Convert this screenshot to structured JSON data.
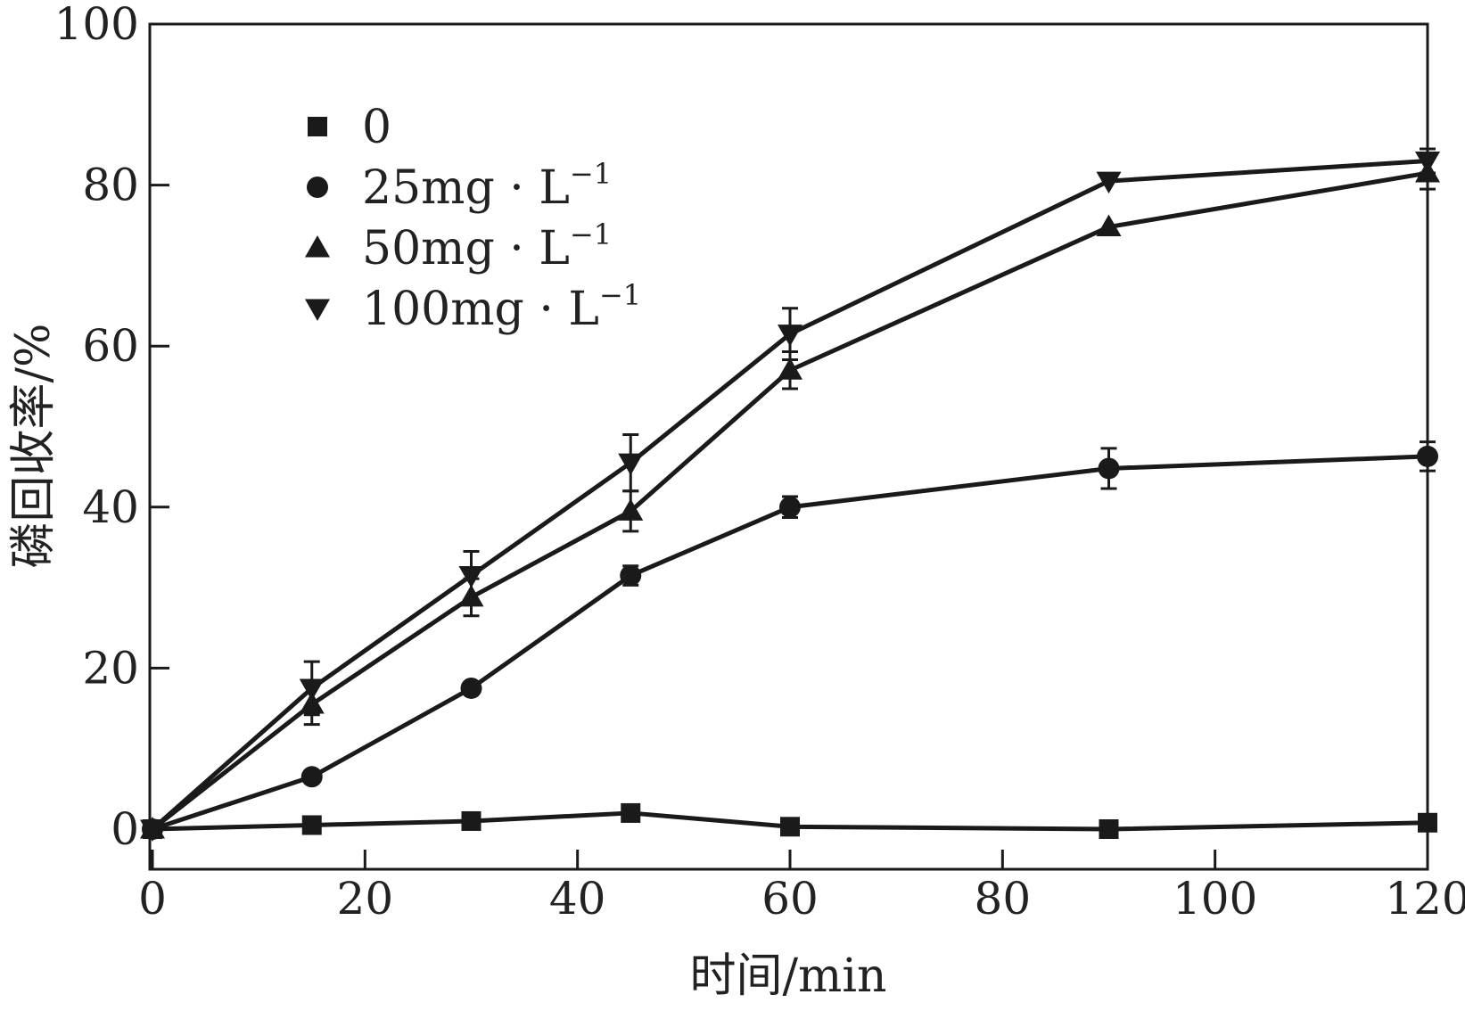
{
  "chart_data": {
    "type": "line",
    "title": "",
    "xlabel": "时间/min",
    "ylabel": "磷回收率/%",
    "xlim": [
      0,
      120
    ],
    "ylim": [
      -5,
      100
    ],
    "x_ticks": [
      0,
      20,
      40,
      60,
      80,
      100,
      120
    ],
    "y_ticks": [
      0,
      20,
      40,
      60,
      80,
      100
    ],
    "x_tick_labels": [
      "0",
      "20",
      "40",
      "60",
      "80",
      "100",
      "120"
    ],
    "y_tick_labels": [
      "0",
      "20",
      "40",
      "60",
      "80",
      "100"
    ],
    "grid": false,
    "legend_position": "top-left",
    "x": [
      0,
      15,
      30,
      45,
      60,
      90,
      120
    ],
    "series": [
      {
        "name": "0",
        "name_main": "0",
        "name_sup": "",
        "marker": "square",
        "values": [
          0,
          0.5,
          1,
          2,
          0.3,
          0,
          0.8
        ],
        "errors": [
          0,
          0,
          0,
          0,
          0,
          0,
          0
        ]
      },
      {
        "name": "25mg·L−1",
        "name_main": "25mg · L",
        "name_sup": "−1",
        "marker": "circle",
        "values": [
          0,
          6.5,
          17.5,
          31.5,
          40,
          44.8,
          46.3
        ],
        "errors": [
          0,
          0,
          0,
          1.2,
          1.3,
          2.5,
          1.8
        ]
      },
      {
        "name": "50mg·L−1",
        "name_main": "50mg · L",
        "name_sup": "−1",
        "marker": "triangle-up",
        "values": [
          0,
          15.5,
          28.8,
          39.5,
          57,
          74.8,
          81.5
        ],
        "errors": [
          0,
          2.5,
          2.3,
          2.5,
          2.3,
          0,
          2.0
        ]
      },
      {
        "name": "100mg·L−1",
        "name_main": "100mg · L",
        "name_sup": "−1",
        "marker": "triangle-down",
        "values": [
          0,
          17.5,
          31.5,
          45.5,
          61.5,
          80.5,
          83
        ],
        "errors": [
          0,
          3.3,
          3.0,
          3.5,
          3.2,
          0,
          1.5
        ]
      }
    ]
  },
  "colors": {
    "line": "#1a1a1a",
    "text": "#222222"
  }
}
